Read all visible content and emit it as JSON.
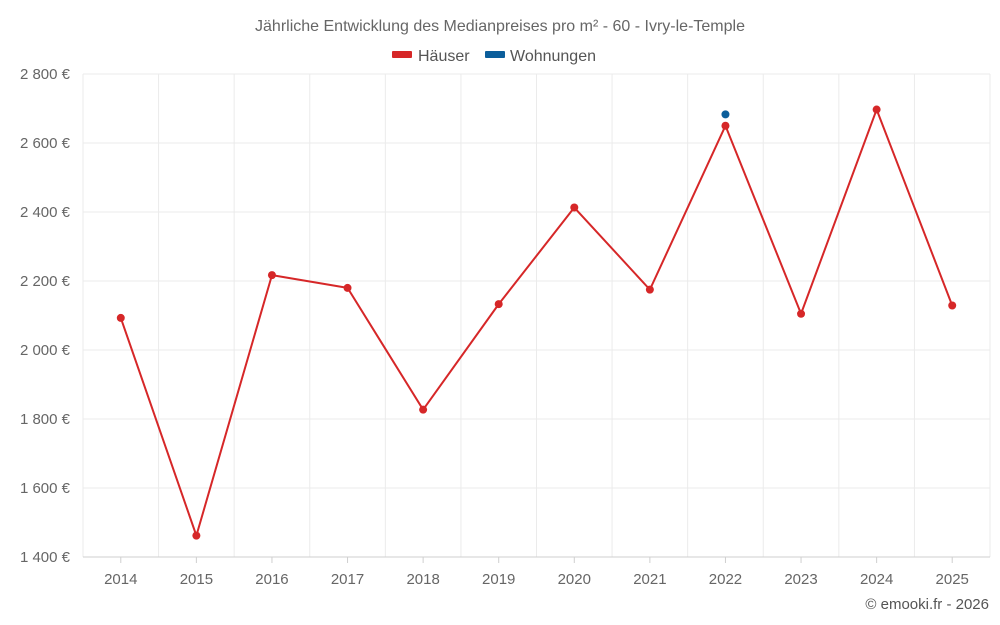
{
  "chart_data": {
    "type": "line",
    "title": "Jährliche Entwicklung des Medianpreises pro m² - 60 - Ivry-le-Temple",
    "categories": [
      "2014",
      "2015",
      "2016",
      "2017",
      "2018",
      "2019",
      "2020",
      "2021",
      "2022",
      "2023",
      "2024",
      "2025"
    ],
    "series": [
      {
        "name": "Häuser",
        "color": "#d62728",
        "values": [
          2093,
          1462,
          2217,
          2180,
          1827,
          2133,
          2413,
          2175,
          2650,
          2105,
          2697,
          2129
        ]
      },
      {
        "name": "Wohnungen",
        "color": "#0b5e9b",
        "values": [
          null,
          null,
          null,
          null,
          null,
          null,
          null,
          null,
          2683,
          null,
          null,
          null
        ]
      }
    ],
    "ylim": [
      1400,
      2800
    ],
    "yticks": [
      1400,
      1600,
      1800,
      2000,
      2200,
      2400,
      2600,
      2800
    ],
    "ytick_labels": [
      "1 400 €",
      "1 600 €",
      "1 800 €",
      "2 000 €",
      "2 200 €",
      "2 400 €",
      "2 600 €",
      "2 800 €"
    ],
    "grid": true,
    "legend": "top-center"
  },
  "credit": "© emooki.fr - 2026"
}
